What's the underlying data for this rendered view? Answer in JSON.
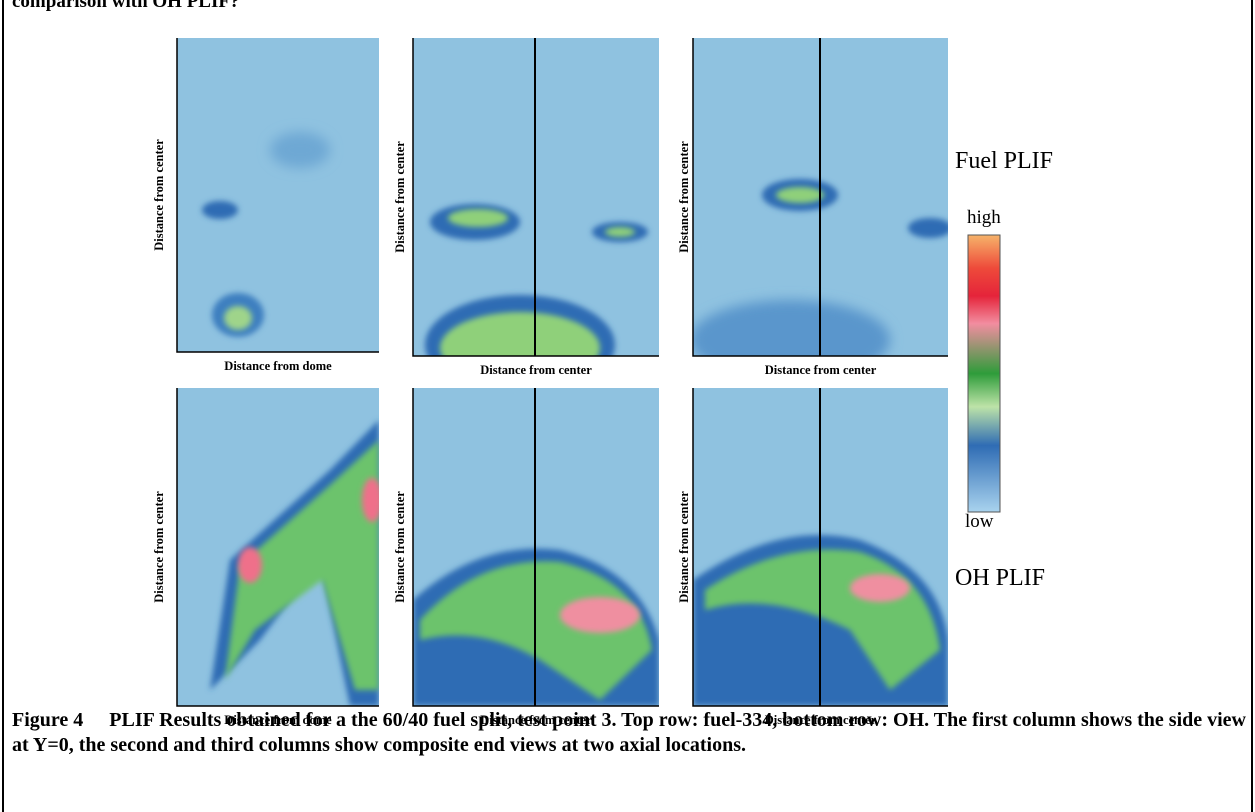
{
  "header_fragment": "comparison with OH PLIF?",
  "panels": [
    {
      "y_label": "Distance from center",
      "x_label": "Distance from dome"
    },
    {
      "y_label": "Distance from center",
      "x_label": "Distance from center"
    },
    {
      "y_label": "Distance from center",
      "x_label": "Distance from center"
    },
    {
      "y_label": "Distance from center",
      "x_label": "Distance from dome"
    },
    {
      "y_label": "Distance from center",
      "x_label": "Distance from center"
    },
    {
      "y_label": "Distance from center",
      "x_label": "Distance from center"
    }
  ],
  "row_labels": [
    "Fuel PLIF",
    "OH PLIF"
  ],
  "colorbar": {
    "high": "high",
    "low": "low"
  },
  "caption": {
    "label": "Figure 4",
    "text": "PLIF Results obtained for a the 60/40 fuel split, test point 3.  Top row: fuel-334, bottom row: OH.  The first column shows the side view at Y=0, the second and third columns show composite end views at two axial locations."
  }
}
